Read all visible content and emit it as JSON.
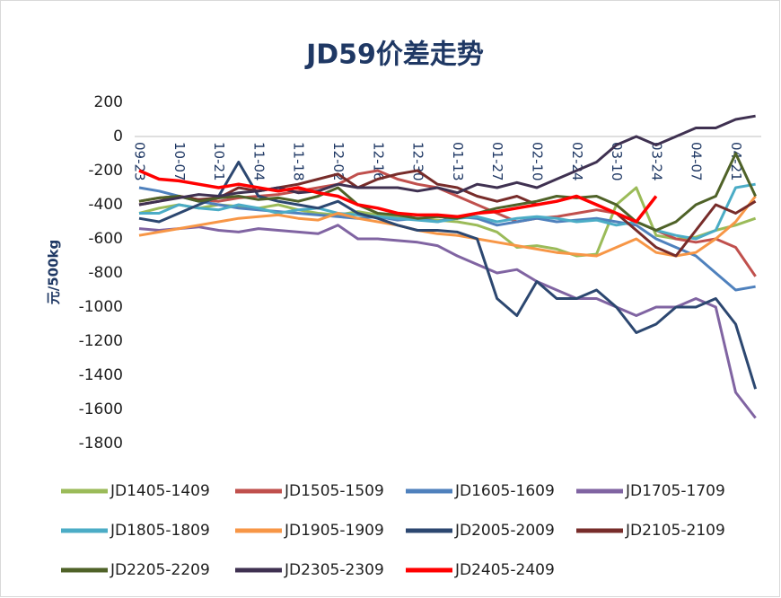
{
  "chart_data": {
    "type": "line",
    "title": "JD59价差走势",
    "y_label": "元/500kg",
    "categories": [
      "09-23",
      null,
      "10-07",
      null,
      "10-21",
      null,
      "11-04",
      null,
      "11-18",
      null,
      "12-02",
      null,
      "12-16",
      null,
      "12-30",
      null,
      "01-13",
      null,
      "01-27",
      null,
      "02-10",
      null,
      "02-24",
      null,
      "03-10",
      null,
      "03-24",
      null,
      "04-07",
      null,
      "04-21",
      null
    ],
    "ylim": [
      -1800,
      200
    ],
    "yticks": [
      200,
      0,
      -200,
      -400,
      -600,
      -800,
      -1000,
      -1200,
      -1400,
      -1600,
      -1800
    ],
    "grid": false,
    "series": [
      {
        "name": "JD1405-1409",
        "color": "#9bbb59",
        "values": [
          -450,
          -420,
          -400,
          -420,
          -400,
          -410,
          -420,
          -400,
          -430,
          -450,
          -460,
          -440,
          -460,
          -470,
          -480,
          -490,
          -500,
          -520,
          -560,
          -650,
          -640,
          -660,
          -700,
          -690,
          -400,
          -300,
          -580,
          -600,
          -590,
          -550,
          -520,
          -480
        ]
      },
      {
        "name": "JD1505-1509",
        "color": "#c0504d",
        "values": [
          -380,
          -360,
          -350,
          -370,
          -380,
          -360,
          -350,
          -340,
          -320,
          -300,
          -280,
          -220,
          -200,
          -250,
          -280,
          -300,
          -350,
          -400,
          -450,
          -500,
          -480,
          -470,
          -450,
          -430,
          -450,
          -500,
          -550,
          -600,
          -620,
          -600,
          -650,
          -820
        ]
      },
      {
        "name": "JD1605-1609",
        "color": "#4f81bd",
        "values": [
          -300,
          -320,
          -350,
          -380,
          -400,
          -420,
          -430,
          -440,
          -450,
          -460,
          -470,
          -480,
          -470,
          -490,
          -480,
          -500,
          -470,
          -480,
          -520,
          -500,
          -480,
          -500,
          -490,
          -480,
          -500,
          -520,
          -600,
          -650,
          -700,
          -800,
          -900,
          -880
        ]
      },
      {
        "name": "JD1705-1709",
        "color": "#8064a2",
        "values": [
          -540,
          -550,
          -540,
          -530,
          -550,
          -560,
          -540,
          -550,
          -560,
          -570,
          -520,
          -600,
          -600,
          -610,
          -620,
          -640,
          -700,
          -750,
          -800,
          -780,
          -850,
          -900,
          -950,
          -950,
          -1000,
          -1050,
          -1000,
          -1000,
          -950,
          -1000,
          -1500,
          -1650
        ]
      },
      {
        "name": "JD1805-1809",
        "color": "#4bacc6",
        "values": [
          -450,
          -450,
          -400,
          -420,
          -430,
          -400,
          -420,
          -450,
          -430,
          -420,
          -450,
          -460,
          -470,
          -480,
          -490,
          -500,
          -480,
          -470,
          -500,
          -480,
          -470,
          -480,
          -500,
          -490,
          -520,
          -500,
          -550,
          -580,
          -600,
          -550,
          -300,
          -280
        ]
      },
      {
        "name": "JD1905-1909",
        "color": "#f79646",
        "values": [
          -580,
          -560,
          -540,
          -520,
          -500,
          -480,
          -470,
          -460,
          -480,
          -490,
          -450,
          -480,
          -500,
          -520,
          -550,
          -570,
          -580,
          -600,
          -620,
          -640,
          -660,
          -680,
          -690,
          -700,
          -650,
          -600,
          -680,
          -700,
          -680,
          -600,
          -500,
          -350
        ]
      },
      {
        "name": "JD2005-2009",
        "color": "#2c4770",
        "values": [
          -480,
          -500,
          -450,
          -400,
          -350,
          -150,
          -350,
          -380,
          -400,
          -420,
          -380,
          -450,
          -480,
          -520,
          -550,
          -550,
          -560,
          -600,
          -950,
          -1050,
          -850,
          -950,
          -950,
          -900,
          -1000,
          -1150,
          -1100,
          -1000,
          -1000,
          -950,
          -1100,
          -1480
        ]
      },
      {
        "name": "JD2105-2109",
        "color": "#772c2a",
        "values": [
          -400,
          -380,
          -350,
          -370,
          -360,
          -300,
          -320,
          -300,
          -280,
          -250,
          -220,
          -300,
          -250,
          -220,
          -200,
          -280,
          -300,
          -350,
          -380,
          -350,
          -400,
          -380,
          -350,
          -400,
          -450,
          -550,
          -650,
          -700,
          -550,
          -400,
          -450,
          -380
        ]
      },
      {
        "name": "JD2205-2209",
        "color": "#4f6228",
        "values": [
          -380,
          -360,
          -350,
          -380,
          -360,
          -350,
          -370,
          -360,
          -380,
          -350,
          -300,
          -400,
          -450,
          -460,
          -480,
          -470,
          -480,
          -450,
          -420,
          -400,
          -380,
          -350,
          -360,
          -350,
          -400,
          -500,
          -550,
          -500,
          -400,
          -350,
          -100,
          -350
        ]
      },
      {
        "name": "JD2305-2309",
        "color": "#3f3151",
        "values": [
          -400,
          -380,
          -360,
          -340,
          -350,
          -330,
          -320,
          -300,
          -330,
          -320,
          -280,
          -300,
          -300,
          -300,
          -320,
          -300,
          -330,
          -280,
          -300,
          -270,
          -300,
          -250,
          -200,
          -150,
          -50,
          0,
          -50,
          0,
          50,
          50,
          100,
          120
        ]
      },
      {
        "name": "JD2405-2409",
        "color": "#ff0000",
        "values": [
          -200,
          -250,
          -260,
          -280,
          -300,
          -280,
          -300,
          -320,
          -300,
          -330,
          -350,
          -400,
          -420,
          -450,
          -460,
          -460,
          -470,
          -450,
          -440,
          -420,
          -400,
          -380,
          -350,
          -400,
          -450,
          -500,
          -350,
          null,
          null,
          null,
          null,
          null
        ]
      }
    ]
  }
}
